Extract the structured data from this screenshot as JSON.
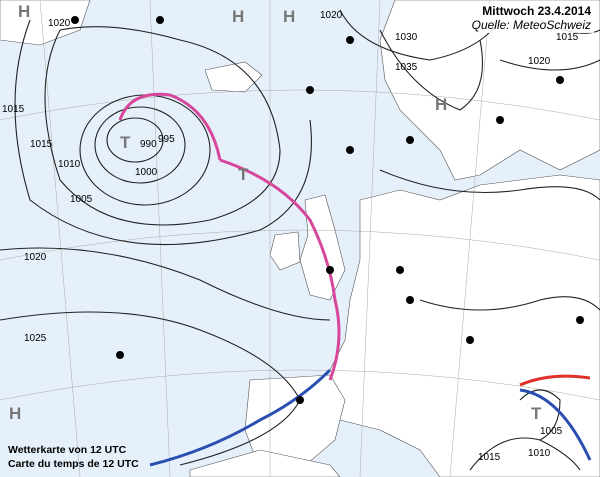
{
  "header": {
    "title": "Mittwoch 23.4.2014",
    "source": "Quelle: MeteoSchweiz"
  },
  "caption": {
    "line1": "Wetterkarte von 12 UTC",
    "line2": "Carte du temps de 12 UTC"
  },
  "colors": {
    "sea": "#e6f0fb",
    "land": "#ffffff",
    "isobar": "#222222",
    "occluded_front": "#d6469a",
    "cold_front": "#2a4fb0",
    "warm_front": "#e0302a",
    "center_letter": "#777777"
  },
  "pressure_centers": [
    {
      "type": "high",
      "letter": "H"
    },
    {
      "type": "high",
      "letter": "H"
    },
    {
      "type": "high",
      "letter": "H"
    },
    {
      "type": "low",
      "letter": "T",
      "value": "990"
    },
    {
      "type": "low",
      "letter": "T"
    },
    {
      "type": "high",
      "letter": "H"
    },
    {
      "type": "high",
      "letter": "H"
    },
    {
      "type": "low",
      "letter": "T"
    }
  ],
  "isobar_labels": [
    "1020",
    "1015",
    "1015",
    "1010",
    "1005",
    "1000",
    "995",
    "990",
    "1020",
    "1025",
    "1020",
    "1030",
    "1035",
    "1020",
    "1015",
    "1015",
    "1010",
    "1005"
  ]
}
